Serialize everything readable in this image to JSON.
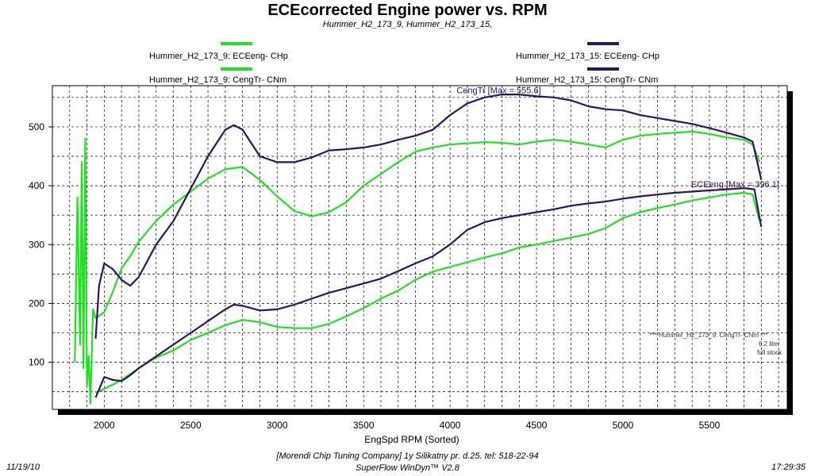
{
  "chart_data": {
    "type": "line",
    "title": "ECEcorrected Engine power vs. RPM",
    "subtitle": "Hummer_H2_173_9, Hummer_H2_173_15,",
    "xlabel": "EngSpd  RPM   (Sorted)",
    "xlim": [
      1700,
      5950
    ],
    "ylim": [
      20,
      570
    ],
    "xticks": [
      2000,
      2500,
      3000,
      3500,
      4000,
      4500,
      5000,
      5500
    ],
    "yticks": [
      100,
      200,
      300,
      400,
      500
    ],
    "grid": true,
    "legend_position": "top",
    "series": [
      {
        "name": "Hummer_H2_173_9: ECEeng- CHp",
        "color": "#22e022",
        "x": [
          1950,
          2000,
          2050,
          2100,
          2200,
          2300,
          2400,
          2500,
          2600,
          2700,
          2800,
          2900,
          3000,
          3100,
          3200,
          3300,
          3400,
          3500,
          3600,
          3700,
          3800,
          3900,
          4000,
          4100,
          4200,
          4300,
          4400,
          4500,
          4600,
          4700,
          4800,
          4900,
          5000,
          5100,
          5200,
          5300,
          5400,
          5500,
          5600,
          5700,
          5750,
          5790
        ],
        "y": [
          48,
          55,
          62,
          70,
          90,
          108,
          120,
          138,
          150,
          163,
          172,
          168,
          160,
          158,
          158,
          165,
          178,
          192,
          208,
          222,
          240,
          254,
          262,
          270,
          278,
          285,
          295,
          300,
          306,
          312,
          318,
          328,
          345,
          355,
          362,
          368,
          375,
          380,
          385,
          388,
          385,
          340
        ]
      },
      {
        "name": "Hummer_H2_173_9: CengTr- CNm",
        "color": "#22e022",
        "x": [
          1830,
          1845,
          1860,
          1870,
          1880,
          1890,
          1900,
          1910,
          1920,
          1935,
          1950,
          2000,
          2050,
          2100,
          2150,
          2200,
          2300,
          2400,
          2500,
          2600,
          2700,
          2800,
          2900,
          3000,
          3100,
          3200,
          3300,
          3400,
          3500,
          3600,
          3700,
          3800,
          3900,
          4000,
          4100,
          4200,
          4300,
          4400,
          4500,
          4600,
          4700,
          4800,
          4900,
          5000,
          5100,
          5200,
          5300,
          5400,
          5500,
          5600,
          5700,
          5750,
          5790
        ],
        "y": [
          100,
          380,
          130,
          440,
          90,
          480,
          60,
          110,
          30,
          190,
          175,
          185,
          220,
          260,
          280,
          305,
          340,
          368,
          390,
          412,
          428,
          432,
          410,
          382,
          357,
          348,
          355,
          372,
          400,
          420,
          440,
          458,
          465,
          470,
          472,
          474,
          473,
          470,
          475,
          478,
          475,
          470,
          465,
          478,
          485,
          488,
          490,
          492,
          488,
          482,
          478,
          470,
          440
        ]
      },
      {
        "name": "Hummer_H2_173_15: ECEeng- CHp",
        "color": "#30145e",
        "x": [
          1950,
          2000,
          2050,
          2100,
          2150,
          2200,
          2300,
          2400,
          2500,
          2600,
          2700,
          2750,
          2800,
          2900,
          3000,
          3100,
          3200,
          3300,
          3400,
          3500,
          3600,
          3700,
          3800,
          3900,
          4000,
          4100,
          4200,
          4300,
          4400,
          4500,
          4600,
          4700,
          4800,
          4900,
          5000,
          5100,
          5200,
          5300,
          5400,
          5500,
          5600,
          5700,
          5760,
          5800
        ],
        "y": [
          40,
          75,
          70,
          68,
          78,
          90,
          110,
          130,
          150,
          170,
          190,
          198,
          196,
          188,
          190,
          198,
          208,
          218,
          226,
          234,
          242,
          255,
          268,
          280,
          300,
          325,
          338,
          345,
          350,
          355,
          360,
          366,
          370,
          373,
          378,
          382,
          385,
          388,
          390,
          392,
          394,
          396,
          394,
          330
        ]
      },
      {
        "name": "Hummer_H2_173_15: CengTr- CNm",
        "color": "#30145e",
        "x": [
          1950,
          1970,
          2000,
          2050,
          2100,
          2150,
          2200,
          2300,
          2400,
          2500,
          2600,
          2700,
          2750,
          2800,
          2900,
          3000,
          3100,
          3200,
          3300,
          3400,
          3500,
          3600,
          3700,
          3800,
          3900,
          4000,
          4100,
          4200,
          4300,
          4400,
          4500,
          4600,
          4700,
          4800,
          4900,
          5000,
          5100,
          5200,
          5300,
          5400,
          5500,
          5600,
          5700,
          5750,
          5800
        ],
        "y": [
          140,
          230,
          268,
          258,
          240,
          230,
          245,
          300,
          340,
          395,
          450,
          495,
          503,
          495,
          450,
          440,
          440,
          448,
          460,
          462,
          465,
          470,
          478,
          485,
          495,
          520,
          540,
          550,
          555,
          555,
          552,
          550,
          545,
          535,
          530,
          528,
          520,
          515,
          510,
          505,
          498,
          490,
          482,
          475,
          410
        ]
      }
    ],
    "annotations": [
      {
        "text": "CengTr [Max = 555.6]",
        "x": 4300,
        "y": 555.6
      },
      {
        "text": "ECEeng [Max = 396.1]",
        "x": 5750,
        "y": 396.1
      }
    ],
    "note_lines": [
      "*** Hummer_H2_173_9: CengTr- CNm ***",
      "6.2 liter",
      "full stock"
    ]
  },
  "footer": {
    "date": "11/19/10",
    "company": "[Morendi Chip Tuning Company] 1y Silikatny pr. d.25. tel: 518-22-94",
    "software": "SuperFlow WinDyn™ V2.8",
    "time": "17:29:35"
  }
}
